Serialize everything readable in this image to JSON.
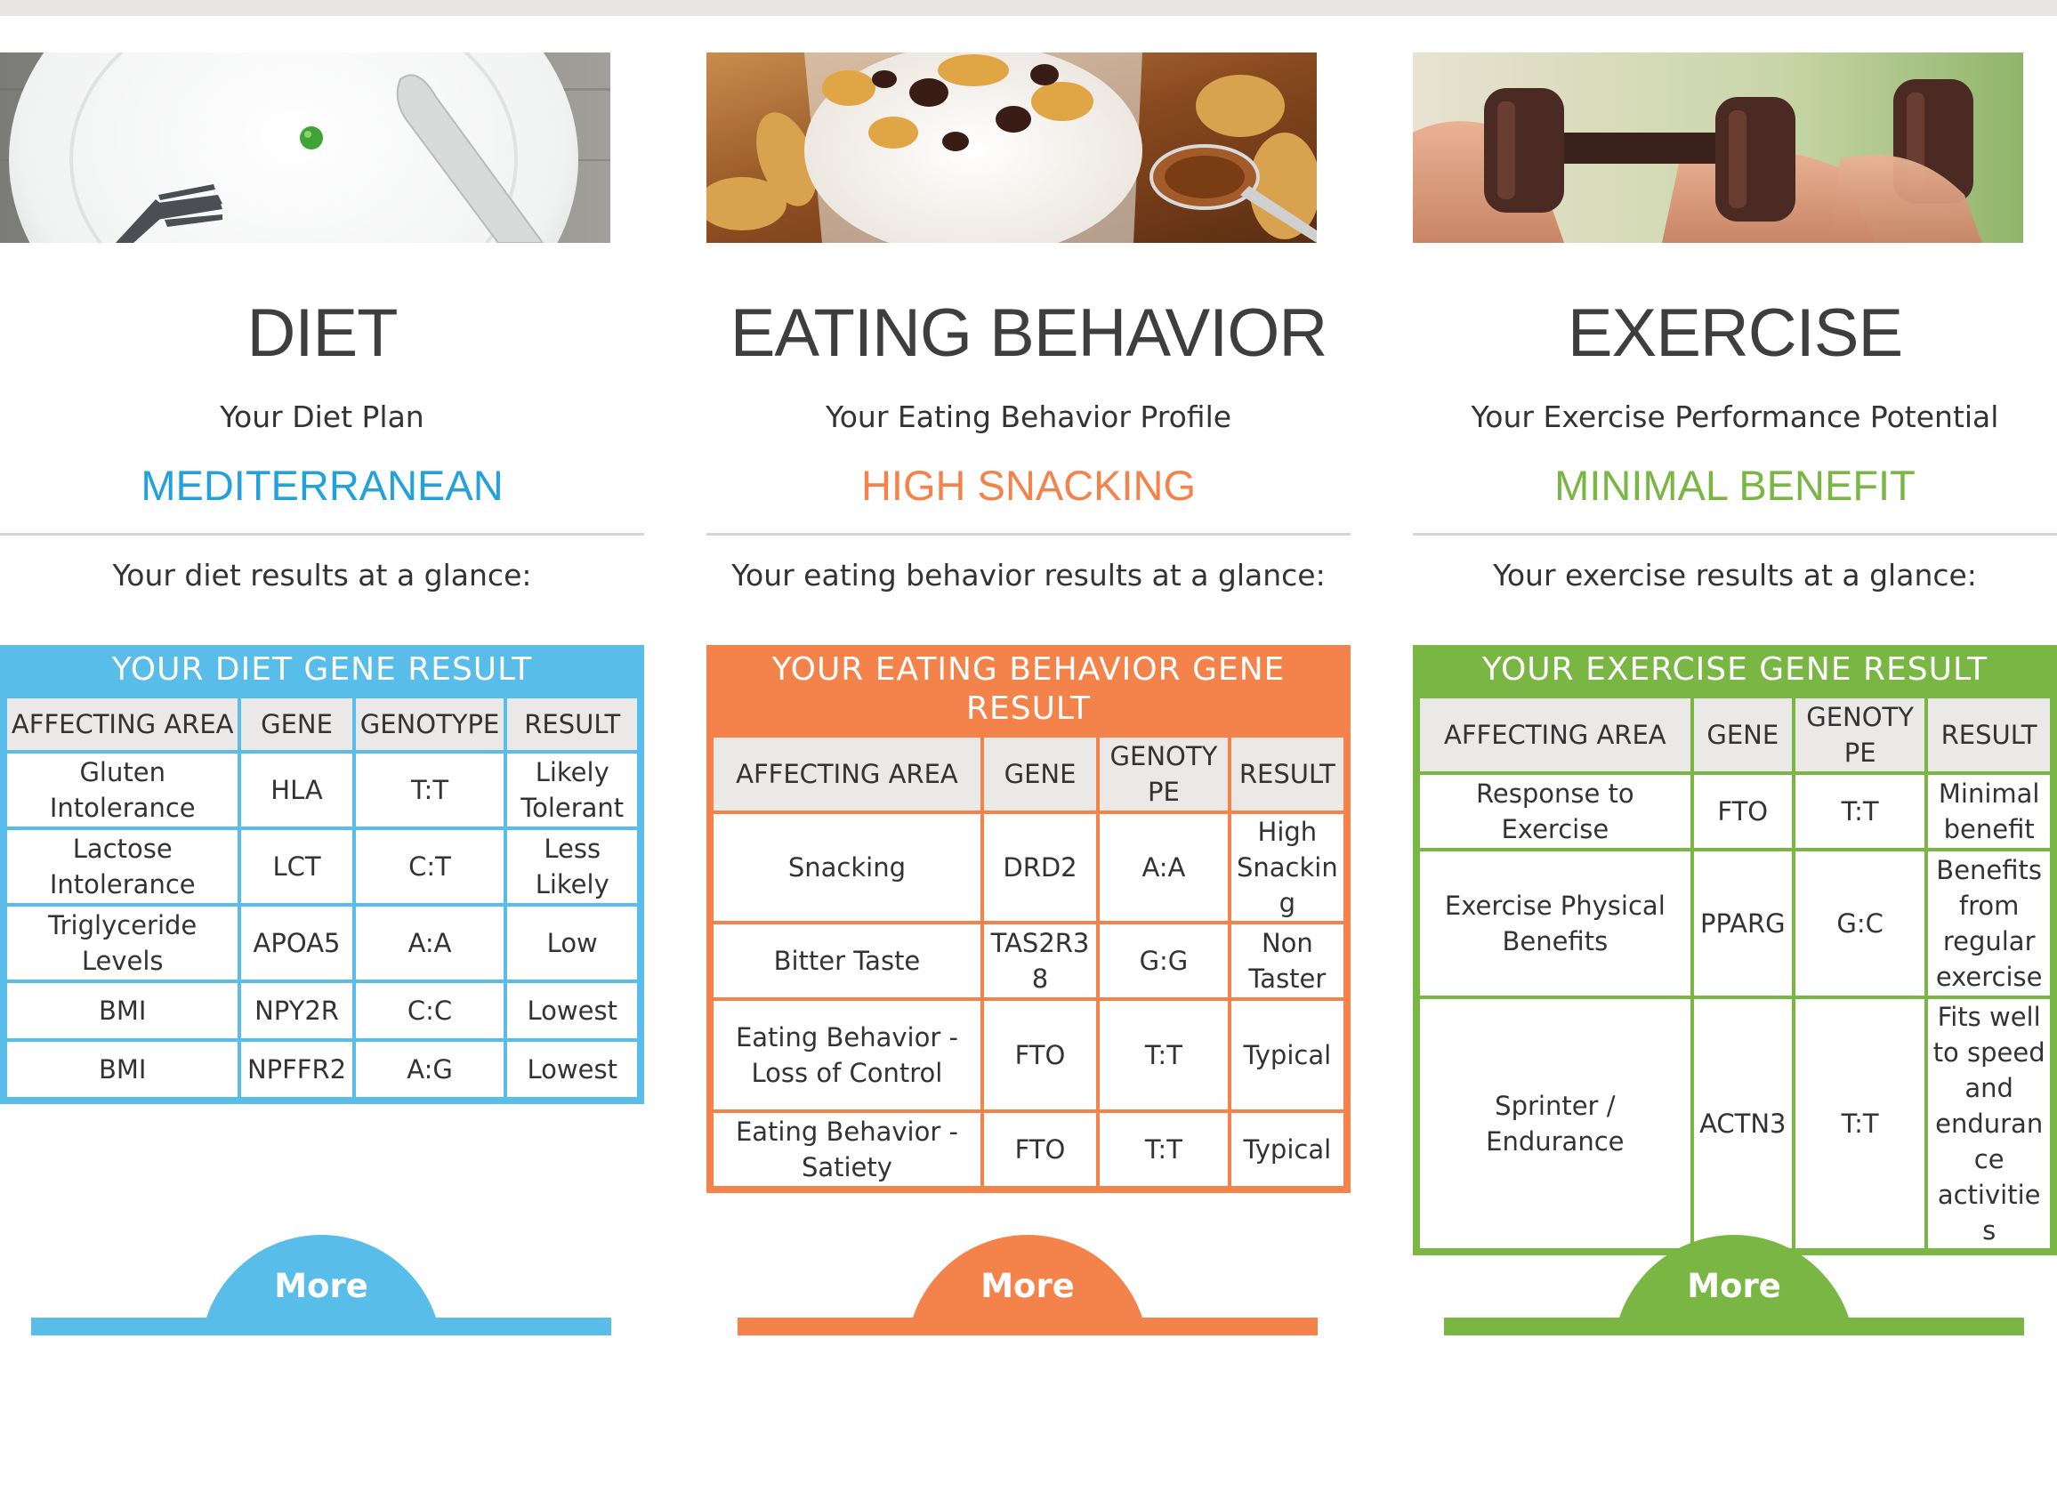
{
  "accents": {
    "diet": "#58bde9",
    "eating": "#f4834b",
    "exercise": "#7ab643"
  },
  "columns": [
    {
      "key": "diet",
      "heading": "DIET",
      "subtitle": "Your Diet Plan",
      "plan": "MEDITERRANEAN",
      "glance": "Your diet results at a glance:",
      "table_title": "YOUR DIET GENE RESULT",
      "headers": [
        "AFFECTING AREA",
        "GENE",
        "GENOTYPE",
        "RESULT"
      ],
      "rows": [
        [
          "Gluten Intolerance",
          "HLA",
          "T:T",
          "Likely Tolerant"
        ],
        [
          "Lactose Intolerance",
          "LCT",
          "C:T",
          "Less Likely"
        ],
        [
          "Triglyceride Levels",
          "APOA5",
          "A:A",
          "Low"
        ],
        [
          "BMI",
          "NPY2R",
          "C:C",
          "Lowest"
        ],
        [
          "BMI",
          "NPFFR2",
          "A:G",
          "Lowest"
        ]
      ],
      "more": "More"
    },
    {
      "key": "eating",
      "heading": "EATING BEHAVIOR",
      "subtitle": "Your Eating Behavior Profile",
      "plan": "HIGH SNACKING",
      "glance": "Your eating behavior results at a glance:",
      "table_title": "YOUR EATING BEHAVIOR GENE RESULT",
      "headers": [
        "AFFECTING AREA",
        "GENE",
        "GENOTYPE",
        "RESULT"
      ],
      "rows": [
        [
          "Snacking",
          "DRD2",
          "A:A",
          "High Snacking"
        ],
        [
          "Bitter Taste",
          "TAS2R38",
          "G:G",
          "Non Taster"
        ],
        [
          "Eating Behavior - Loss of Control",
          "FTO",
          "T:T",
          "Typical"
        ],
        [
          "Eating Behavior - Satiety",
          "FTO",
          "T:T",
          "Typical"
        ]
      ],
      "more": "More"
    },
    {
      "key": "exercise",
      "heading": "EXERCISE",
      "subtitle": "Your Exercise Performance Potential",
      "plan": "MINIMAL BENEFIT",
      "glance": "Your exercise results at a glance:",
      "table_title": "YOUR EXERCISE GENE RESULT",
      "headers": [
        "AFFECTING AREA",
        "GENE",
        "GENOTYPE",
        "RESULT"
      ],
      "rows": [
        [
          "Response to Exercise",
          "FTO",
          "T:T",
          "Minimal benefit"
        ],
        [
          "Exercise Physical Benefits",
          "PPARG",
          "G:C",
          "Benefits from regular exercise"
        ],
        [
          "Sprinter / Endurance",
          "ACTN3",
          "T:T",
          "Fits well to speed and endurance activities"
        ]
      ],
      "more": "More"
    }
  ]
}
